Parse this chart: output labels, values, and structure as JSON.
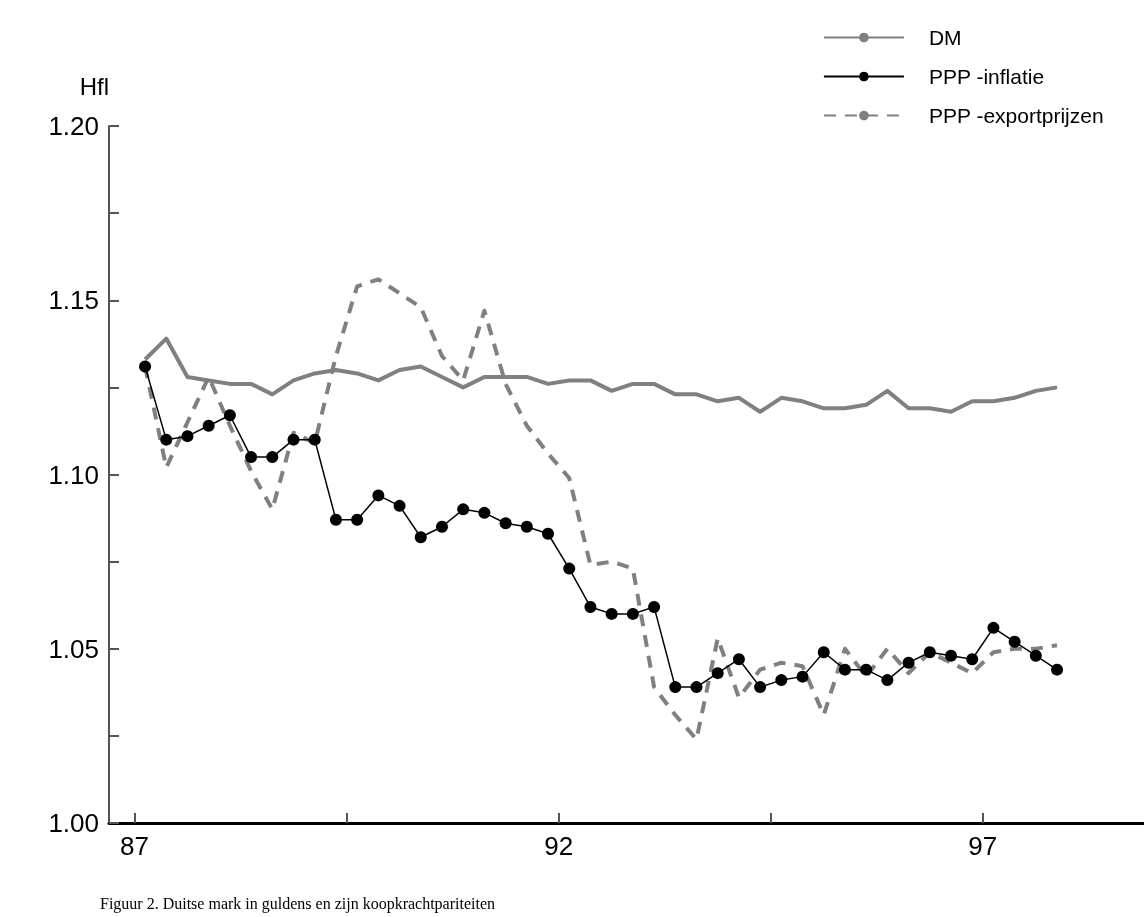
{
  "chart_data": {
    "type": "line",
    "ylabel": "Hfl",
    "annotations": [
      "Figuur 2. Duitse mark in guldens en zijn koopkrachtpariteiten"
    ],
    "x": [
      87.125,
      87.375,
      87.625,
      87.875,
      88.125,
      88.375,
      88.625,
      88.875,
      89.125,
      89.375,
      89.625,
      89.875,
      90.125,
      90.375,
      90.625,
      90.875,
      91.125,
      91.375,
      91.625,
      91.875,
      92.125,
      92.375,
      92.625,
      92.875,
      93.125,
      93.375,
      93.625,
      93.875,
      94.125,
      94.375,
      94.625,
      94.875,
      95.125,
      95.375,
      95.625,
      95.875,
      96.125,
      96.375,
      96.625,
      96.875,
      97.125,
      97.375,
      97.625,
      97.875
    ],
    "series": [
      {
        "name": "DM",
        "color": "#808080",
        "line_style": "solid",
        "marker": "none",
        "values": [
          1.133,
          1.139,
          1.128,
          1.127,
          1.126,
          1.126,
          1.123,
          1.127,
          1.129,
          1.13,
          1.129,
          1.127,
          1.13,
          1.131,
          1.128,
          1.125,
          1.128,
          1.128,
          1.128,
          1.126,
          1.127,
          1.127,
          1.124,
          1.126,
          1.126,
          1.123,
          1.123,
          1.121,
          1.122,
          1.118,
          1.122,
          1.121,
          1.119,
          1.119,
          1.12,
          1.124,
          1.119,
          1.119,
          1.118,
          1.121,
          1.121,
          1.122,
          1.124,
          1.125
        ]
      },
      {
        "name": "PPP -inflatie",
        "color": "#000000",
        "line_style": "solid",
        "marker": "circle",
        "values": [
          1.131,
          1.11,
          1.111,
          1.114,
          1.117,
          1.105,
          1.105,
          1.11,
          1.11,
          1.087,
          1.087,
          1.094,
          1.091,
          1.082,
          1.085,
          1.09,
          1.089,
          1.086,
          1.085,
          1.083,
          1.073,
          1.062,
          1.06,
          1.06,
          1.062,
          1.039,
          1.039,
          1.043,
          1.047,
          1.039,
          1.041,
          1.042,
          1.049,
          1.044,
          1.044,
          1.041,
          1.046,
          1.049,
          1.048,
          1.047,
          1.056,
          1.052,
          1.048,
          1.044
        ]
      },
      {
        "name": "PPP -exportprijzen",
        "color": "#808080",
        "line_style": "dashed",
        "marker": "none",
        "values": [
          1.131,
          1.102,
          1.115,
          1.128,
          1.114,
          1.101,
          1.09,
          1.112,
          1.109,
          1.134,
          1.154,
          1.156,
          1.152,
          1.148,
          1.134,
          1.127,
          1.147,
          1.126,
          1.114,
          1.106,
          1.099,
          1.074,
          1.075,
          1.073,
          1.039,
          1.031,
          1.024,
          1.053,
          1.036,
          1.044,
          1.046,
          1.045,
          1.031,
          1.05,
          1.042,
          1.05,
          1.043,
          1.049,
          1.046,
          1.043,
          1.049,
          1.05,
          1.05,
          1.051
        ]
      }
    ],
    "xlim": [
      86.7,
      98.9
    ],
    "xticks": [
      87,
      {
        "value": 89.5,
        "label": null
      },
      92,
      {
        "value": 94.5,
        "label": null
      },
      97
    ],
    "ylim": [
      1.0,
      1.2
    ],
    "yticks": [
      {
        "value": 1,
        "label": "1.00"
      },
      {
        "value": 1.025,
        "label": null
      },
      {
        "value": 1.05,
        "label": "1.05"
      },
      {
        "value": 1.075,
        "label": null
      },
      {
        "value": 1.1,
        "label": "1.10"
      },
      {
        "value": 1.125,
        "label": null
      },
      {
        "value": 1.15,
        "label": "1.15"
      },
      {
        "value": 1.175,
        "label": null
      },
      {
        "value": 1.2,
        "label": "1.20"
      }
    ],
    "grid": false,
    "legend": "top right"
  }
}
